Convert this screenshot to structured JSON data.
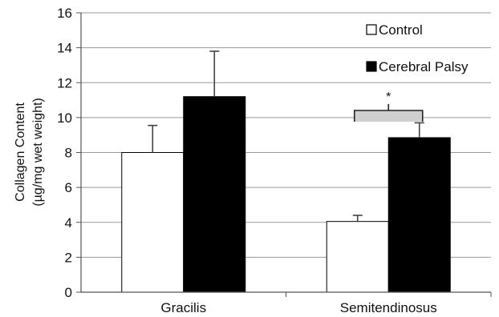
{
  "chart_data": {
    "type": "bar",
    "title": "",
    "xlabel": "",
    "ylabel_lines": [
      "Collagen Content",
      "(µg/mg wet weight)"
    ],
    "ylim": [
      0,
      16
    ],
    "yticks": [
      0,
      2,
      4,
      6,
      8,
      10,
      12,
      14,
      16
    ],
    "ytick_labels": [
      "0",
      "2",
      "4",
      "6",
      "8",
      "10",
      "12",
      "14",
      "16"
    ],
    "grid": true,
    "legend_position": "top-right",
    "categories": [
      "Gracilis",
      "Semitendinosus"
    ],
    "series": [
      {
        "name": "Control",
        "color": "#ffffff",
        "values": [
          8.0,
          4.05
        ],
        "errors": [
          1.55,
          0.35
        ]
      },
      {
        "name": "Cerebral Palsy",
        "color": "#000000",
        "values": [
          11.2,
          8.85
        ],
        "errors": [
          2.6,
          0.85
        ]
      }
    ],
    "annotations": [
      {
        "text": "*",
        "category_index": 1,
        "type": "significance_bracket"
      }
    ]
  }
}
